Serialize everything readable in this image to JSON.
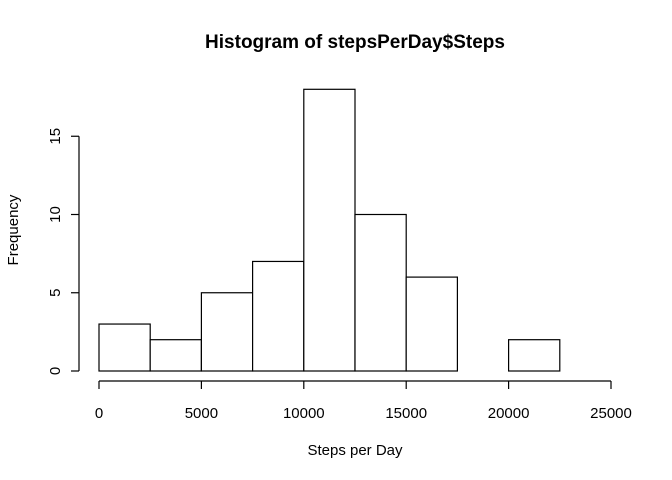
{
  "chart_data": {
    "type": "bar",
    "histogram": true,
    "title": "Histogram of stepsPerDay$Steps",
    "xlabel": "Steps per Day",
    "ylabel": "Frequency",
    "bins": [
      {
        "from": 0,
        "to": 2500,
        "count": 3
      },
      {
        "from": 2500,
        "to": 5000,
        "count": 2
      },
      {
        "from": 5000,
        "to": 7500,
        "count": 5
      },
      {
        "from": 7500,
        "to": 10000,
        "count": 7
      },
      {
        "from": 10000,
        "to": 12500,
        "count": 18
      },
      {
        "from": 12500,
        "to": 15000,
        "count": 10
      },
      {
        "from": 15000,
        "to": 17500,
        "count": 6
      },
      {
        "from": 17500,
        "to": 20000,
        "count": 0
      },
      {
        "from": 20000,
        "to": 22500,
        "count": 2
      },
      {
        "from": 22500,
        "to": 25000,
        "count": 0
      }
    ],
    "xlim": [
      0,
      25000
    ],
    "ylim": [
      0,
      18
    ],
    "xticks": [
      0,
      5000,
      10000,
      15000,
      20000,
      25000
    ],
    "xtick_labels": [
      "0",
      "5000",
      "10000",
      "15000",
      "20000",
      "25000"
    ],
    "yticks": [
      0,
      5,
      10,
      15
    ],
    "ytick_labels": [
      "0",
      "5",
      "10",
      "15"
    ],
    "grid": false,
    "legend": "none"
  }
}
